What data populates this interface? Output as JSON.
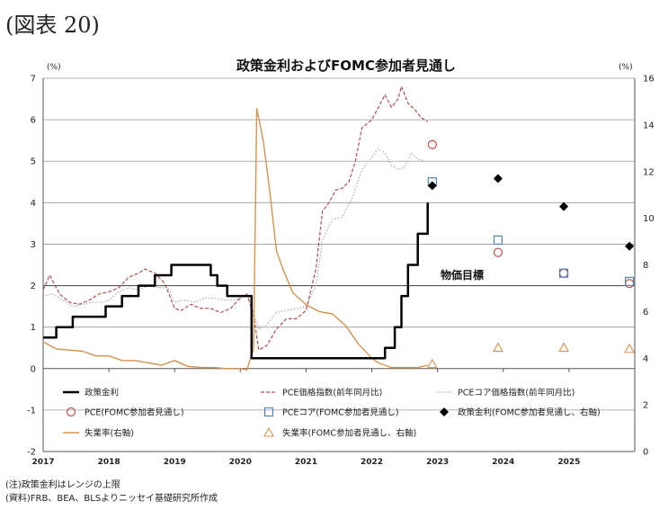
{
  "figure_label": "(図表 20)",
  "notes": {
    "note": "(注)政策金利はレンジの上限",
    "source": "(資料)FRB、BEA、BLSよりニッセイ基礎研究所作成"
  },
  "chart_data": {
    "type": "line",
    "title": "政策金利およびFOMC参加者見通し",
    "y_left": {
      "unit": "(%)",
      "ylim": [
        -2,
        7
      ],
      "ticks": [
        -2,
        -1,
        0,
        1,
        2,
        3,
        4,
        5,
        6,
        7
      ]
    },
    "y_right": {
      "unit": "(%)",
      "ylim": [
        0,
        16
      ],
      "ticks": [
        0,
        2,
        4,
        6,
        8,
        10,
        12,
        14,
        16
      ]
    },
    "x": {
      "xlim": [
        2017.0,
        2026.0
      ],
      "tick_labels": [
        "2017",
        "2018",
        "2019",
        "2020",
        "2021",
        "2022",
        "2023",
        "2024",
        "2025"
      ],
      "tick_values": [
        2017,
        2018,
        2019,
        2020,
        2021,
        2022,
        2023,
        2024,
        2025
      ]
    },
    "grid": "horizontal",
    "target_line": {
      "value": 2,
      "label": "物価目標"
    },
    "colors": {
      "fed_funds": "#000000",
      "pce": "#b0504f",
      "core_pce": "#a9a9a9",
      "unemployment": "#d39350",
      "pce_proj": "#c0504d",
      "core_pce_proj": "#4f81bd",
      "fed_proj": "#000000",
      "unemp_proj": "#d39350"
    },
    "legend": {
      "position": "bottom",
      "items": [
        {
          "key": "fed_funds",
          "label": "政策金利"
        },
        {
          "key": "pce",
          "label": "PCE価格指数(前年同月比)"
        },
        {
          "key": "core_pce",
          "label": "PCEコア価格指数(前年同月比)"
        },
        {
          "key": "pce_proj",
          "label": "PCE(FOMC参加者見通し)"
        },
        {
          "key": "core_pce_proj",
          "label": "PCEコア(FOMC参加者見通し)"
        },
        {
          "key": "fed_proj",
          "label": "政策金利(FOMC参加者見通し、右軸)"
        },
        {
          "key": "unemployment",
          "label": "失業率(右軸)"
        },
        {
          "key": "unemp_proj",
          "label": "失業率(FOMC参加者見通し、右軸)"
        }
      ]
    },
    "series": [
      {
        "key": "fed_funds",
        "axis": "left",
        "style": "step",
        "points": [
          [
            2017.0,
            0.75
          ],
          [
            2017.2,
            1.0
          ],
          [
            2017.45,
            1.25
          ],
          [
            2017.95,
            1.5
          ],
          [
            2018.2,
            1.75
          ],
          [
            2018.45,
            2.0
          ],
          [
            2018.7,
            2.25
          ],
          [
            2018.95,
            2.5
          ],
          [
            2019.55,
            2.25
          ],
          [
            2019.65,
            2.0
          ],
          [
            2019.8,
            1.75
          ],
          [
            2020.17,
            0.25
          ],
          [
            2022.2,
            0.5
          ],
          [
            2022.35,
            1.0
          ],
          [
            2022.45,
            1.75
          ],
          [
            2022.55,
            2.5
          ],
          [
            2022.7,
            3.25
          ],
          [
            2022.85,
            4.0
          ]
        ]
      },
      {
        "key": "pce",
        "axis": "left",
        "style": "dashed",
        "points": [
          [
            2017.0,
            1.9
          ],
          [
            2017.1,
            2.25
          ],
          [
            2017.25,
            1.8
          ],
          [
            2017.4,
            1.6
          ],
          [
            2017.55,
            1.55
          ],
          [
            2017.7,
            1.65
          ],
          [
            2017.85,
            1.8
          ],
          [
            2018.0,
            1.85
          ],
          [
            2018.15,
            1.95
          ],
          [
            2018.3,
            2.2
          ],
          [
            2018.45,
            2.3
          ],
          [
            2018.55,
            2.4
          ],
          [
            2018.7,
            2.3
          ],
          [
            2018.85,
            2.05
          ],
          [
            2019.0,
            1.45
          ],
          [
            2019.1,
            1.4
          ],
          [
            2019.25,
            1.55
          ],
          [
            2019.4,
            1.45
          ],
          [
            2019.55,
            1.45
          ],
          [
            2019.7,
            1.35
          ],
          [
            2019.85,
            1.45
          ],
          [
            2020.0,
            1.7
          ],
          [
            2020.1,
            1.8
          ],
          [
            2020.2,
            1.3
          ],
          [
            2020.28,
            0.45
          ],
          [
            2020.4,
            0.55
          ],
          [
            2020.55,
            0.95
          ],
          [
            2020.7,
            1.2
          ],
          [
            2020.85,
            1.2
          ],
          [
            2021.0,
            1.4
          ],
          [
            2021.15,
            2.4
          ],
          [
            2021.25,
            3.8
          ],
          [
            2021.35,
            4.0
          ],
          [
            2021.45,
            4.3
          ],
          [
            2021.55,
            4.35
          ],
          [
            2021.65,
            4.5
          ],
          [
            2021.75,
            5.0
          ],
          [
            2021.85,
            5.8
          ],
          [
            2022.0,
            6.0
          ],
          [
            2022.1,
            6.3
          ],
          [
            2022.2,
            6.6
          ],
          [
            2022.3,
            6.3
          ],
          [
            2022.4,
            6.5
          ],
          [
            2022.45,
            6.8
          ],
          [
            2022.55,
            6.4
          ],
          [
            2022.65,
            6.25
          ],
          [
            2022.75,
            6.05
          ],
          [
            2022.85,
            5.95
          ]
        ]
      },
      {
        "key": "core_pce",
        "axis": "left",
        "style": "dotted",
        "points": [
          [
            2017.0,
            1.75
          ],
          [
            2017.15,
            1.8
          ],
          [
            2017.3,
            1.65
          ],
          [
            2017.45,
            1.5
          ],
          [
            2017.6,
            1.55
          ],
          [
            2017.75,
            1.6
          ],
          [
            2017.9,
            1.6
          ],
          [
            2018.0,
            1.65
          ],
          [
            2018.15,
            1.85
          ],
          [
            2018.3,
            1.95
          ],
          [
            2018.45,
            1.9
          ],
          [
            2018.6,
            2.0
          ],
          [
            2018.75,
            1.95
          ],
          [
            2018.9,
            1.95
          ],
          [
            2019.0,
            1.6
          ],
          [
            2019.15,
            1.65
          ],
          [
            2019.3,
            1.6
          ],
          [
            2019.45,
            1.7
          ],
          [
            2019.6,
            1.7
          ],
          [
            2019.75,
            1.65
          ],
          [
            2019.9,
            1.65
          ],
          [
            2020.0,
            1.7
          ],
          [
            2020.1,
            1.8
          ],
          [
            2020.2,
            1.35
          ],
          [
            2020.28,
            0.95
          ],
          [
            2020.4,
            1.05
          ],
          [
            2020.55,
            1.35
          ],
          [
            2020.7,
            1.4
          ],
          [
            2020.85,
            1.45
          ],
          [
            2021.0,
            1.5
          ],
          [
            2021.15,
            2.0
          ],
          [
            2021.25,
            3.1
          ],
          [
            2021.4,
            3.6
          ],
          [
            2021.55,
            3.65
          ],
          [
            2021.7,
            4.1
          ],
          [
            2021.85,
            4.8
          ],
          [
            2022.0,
            5.1
          ],
          [
            2022.1,
            5.3
          ],
          [
            2022.2,
            5.2
          ],
          [
            2022.3,
            4.9
          ],
          [
            2022.4,
            4.8
          ],
          [
            2022.5,
            4.85
          ],
          [
            2022.6,
            5.2
          ],
          [
            2022.7,
            5.05
          ],
          [
            2022.8,
            5.0
          ]
        ]
      },
      {
        "key": "unemployment",
        "axis": "right",
        "style": "solid",
        "points": [
          [
            2017.0,
            4.7
          ],
          [
            2017.2,
            4.4
          ],
          [
            2017.4,
            4.35
          ],
          [
            2017.6,
            4.3
          ],
          [
            2017.8,
            4.1
          ],
          [
            2018.0,
            4.1
          ],
          [
            2018.2,
            3.9
          ],
          [
            2018.4,
            3.9
          ],
          [
            2018.6,
            3.8
          ],
          [
            2018.8,
            3.7
          ],
          [
            2019.0,
            3.9
          ],
          [
            2019.2,
            3.65
          ],
          [
            2019.4,
            3.6
          ],
          [
            2019.6,
            3.6
          ],
          [
            2019.8,
            3.55
          ],
          [
            2020.0,
            3.55
          ],
          [
            2020.1,
            3.5
          ],
          [
            2020.2,
            4.4
          ],
          [
            2020.25,
            14.7
          ],
          [
            2020.35,
            13.3
          ],
          [
            2020.45,
            11.1
          ],
          [
            2020.55,
            8.6
          ],
          [
            2020.65,
            7.8
          ],
          [
            2020.8,
            6.8
          ],
          [
            2021.0,
            6.3
          ],
          [
            2021.2,
            6.0
          ],
          [
            2021.4,
            5.9
          ],
          [
            2021.6,
            5.4
          ],
          [
            2021.8,
            4.6
          ],
          [
            2022.0,
            4.0
          ],
          [
            2022.1,
            3.8
          ],
          [
            2022.3,
            3.6
          ],
          [
            2022.5,
            3.6
          ],
          [
            2022.7,
            3.6
          ],
          [
            2022.85,
            3.7
          ]
        ]
      }
    ],
    "projections": [
      {
        "key": "pce_proj",
        "axis": "left",
        "marker": "circle",
        "points": [
          [
            2022.92,
            5.4
          ],
          [
            2023.92,
            2.8
          ],
          [
            2024.92,
            2.3
          ],
          [
            2025.92,
            2.05
          ]
        ]
      },
      {
        "key": "core_pce_proj",
        "axis": "left",
        "marker": "square",
        "points": [
          [
            2022.92,
            4.5
          ],
          [
            2023.92,
            3.1
          ],
          [
            2024.92,
            2.3
          ],
          [
            2025.92,
            2.1
          ]
        ]
      },
      {
        "key": "fed_proj",
        "axis": "right",
        "marker": "diamond",
        "points": [
          [
            2022.92,
            11.4
          ],
          [
            2023.92,
            11.7
          ],
          [
            2024.92,
            10.5
          ],
          [
            2025.92,
            8.8
          ]
        ]
      },
      {
        "key": "unemp_proj",
        "axis": "right",
        "marker": "triangle",
        "points": [
          [
            2022.92,
            3.75
          ],
          [
            2023.92,
            4.45
          ],
          [
            2024.92,
            4.45
          ],
          [
            2025.92,
            4.4
          ]
        ]
      }
    ]
  }
}
